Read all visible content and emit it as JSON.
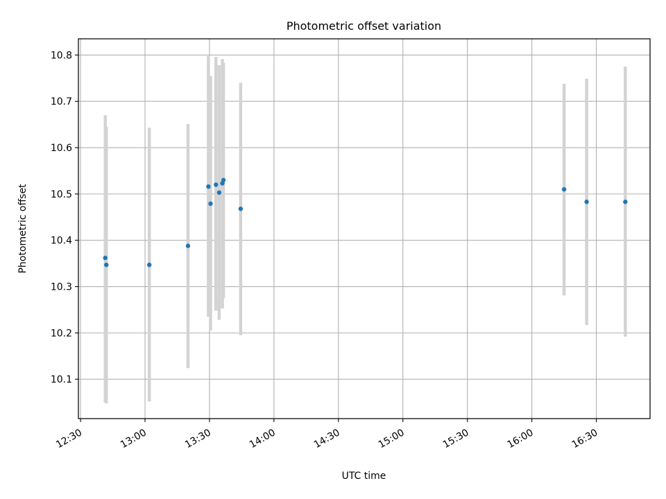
{
  "chart_data": {
    "type": "scatter",
    "title": "Photometric offset variation",
    "xlabel": "UTC time",
    "ylabel": "Photometric offset",
    "grid": true,
    "x_axis_format": "HH:MM",
    "x_ticks": [
      "12:30",
      "13:00",
      "13:30",
      "14:00",
      "14:30",
      "15:00",
      "15:30",
      "16:00",
      "16:30"
    ],
    "y_ticks": [
      "10.1",
      "10.2",
      "10.3",
      "10.4",
      "10.5",
      "10.6",
      "10.7",
      "10.8"
    ],
    "xlim": [
      "12:29:00",
      "16:55:00"
    ],
    "ylim": [
      10.015,
      10.835
    ],
    "colors": {
      "point": "#1f77b4",
      "errorbar": "#d3d3d3",
      "grid": "#b0b0b0"
    },
    "series": [
      {
        "points": [
          {
            "x": "12:41:30",
            "y": 10.362,
            "err_low": 10.05,
            "err_high": 10.67
          },
          {
            "x": "12:42:00",
            "y": 10.347,
            "err_low": 10.048,
            "err_high": 10.645
          },
          {
            "x": "13:02:00",
            "y": 10.347,
            "err_low": 10.052,
            "err_high": 10.643
          },
          {
            "x": "13:20:00",
            "y": 10.388,
            "err_low": 10.124,
            "err_high": 10.651
          },
          {
            "x": "13:29:30",
            "y": 10.516,
            "err_low": 10.235,
            "err_high": 10.798
          },
          {
            "x": "13:30:30",
            "y": 10.479,
            "err_low": 10.205,
            "err_high": 10.755
          },
          {
            "x": "13:33:00",
            "y": 10.52,
            "err_low": 10.248,
            "err_high": 10.796
          },
          {
            "x": "13:34:30",
            "y": 10.503,
            "err_low": 10.228,
            "err_high": 10.778
          },
          {
            "x": "13:36:00",
            "y": 10.523,
            "err_low": 10.253,
            "err_high": 10.791
          },
          {
            "x": "13:36:30",
            "y": 10.53,
            "err_low": 10.275,
            "err_high": 10.783
          },
          {
            "x": "13:44:30",
            "y": 10.468,
            "err_low": 10.195,
            "err_high": 10.74
          },
          {
            "x": "16:15:00",
            "y": 10.51,
            "err_low": 10.281,
            "err_high": 10.738
          },
          {
            "x": "16:25:30",
            "y": 10.483,
            "err_low": 10.217,
            "err_high": 10.749
          },
          {
            "x": "16:43:30",
            "y": 10.483,
            "err_low": 10.192,
            "err_high": 10.775
          }
        ]
      }
    ]
  }
}
